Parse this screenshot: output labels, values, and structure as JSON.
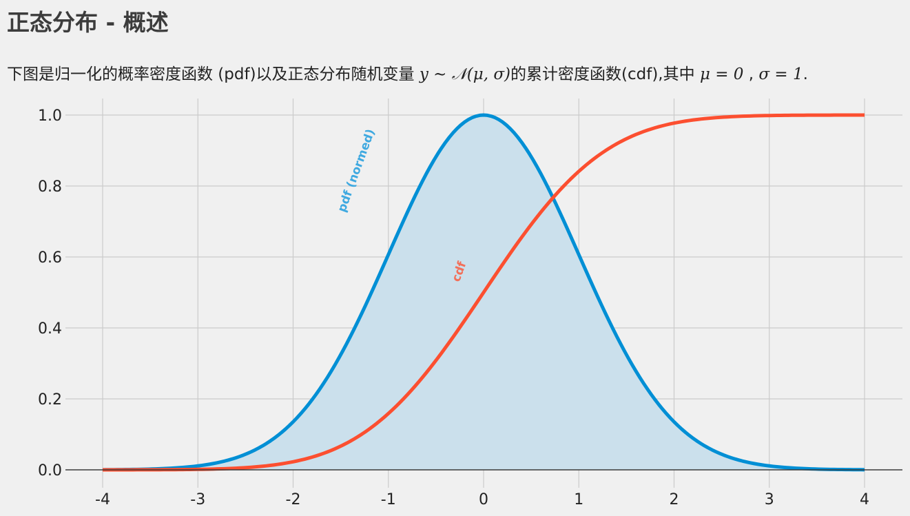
{
  "title": "正态分布 - 概述",
  "subtitle": {
    "prefix": "下图是归一化的概率密度函数 (pdf)以及正态分布随机变量 ",
    "math1": "y ∼ 𝒩(μ, σ)",
    "middle": "的累计密度函数(cdf),其中 ",
    "math2": "μ = 0",
    "sep": " , ",
    "math3": "σ = 1",
    "suffix": "."
  },
  "chart_data": {
    "type": "line",
    "xlim": [
      -4,
      4
    ],
    "ylim": [
      0,
      1.0
    ],
    "x_ticks": [
      "-4",
      "-3",
      "-2",
      "-1",
      "0",
      "1",
      "2",
      "3",
      "4"
    ],
    "y_ticks": [
      "0.0",
      "0.2",
      "0.4",
      "0.6",
      "0.8",
      "1.0"
    ],
    "grid": true,
    "series": [
      {
        "name": "pdf (normed)",
        "color": "#008fd5",
        "fill": "#cbe0ec",
        "x": [
          -4,
          -3.5,
          -3,
          -2.5,
          -2,
          -1.5,
          -1,
          -0.5,
          0,
          0.5,
          1,
          1.5,
          2,
          2.5,
          3,
          3.5,
          4
        ],
        "values": [
          0.0003,
          0.0022,
          0.0111,
          0.0439,
          0.1353,
          0.3247,
          0.6065,
          0.8825,
          1.0,
          0.8825,
          0.6065,
          0.3247,
          0.1353,
          0.0439,
          0.0111,
          0.0022,
          0.0003
        ]
      },
      {
        "name": "cdf",
        "color": "#fc4f30",
        "x": [
          -4,
          -3.5,
          -3,
          -2.5,
          -2,
          -1.5,
          -1,
          -0.5,
          0,
          0.5,
          1,
          1.5,
          2,
          2.5,
          3,
          3.5,
          4
        ],
        "values": [
          3e-05,
          0.0002,
          0.0013,
          0.0062,
          0.0228,
          0.0668,
          0.1587,
          0.3085,
          0.5,
          0.6915,
          0.8413,
          0.9332,
          0.9772,
          0.9938,
          0.9987,
          0.9998,
          1.0
        ]
      }
    ],
    "annotations": [
      {
        "text": "pdf (normed)",
        "x": -1.3,
        "y": 0.84,
        "rotation": -70,
        "color": "#3fa9e0"
      },
      {
        "text": "cdf",
        "x": -0.22,
        "y": 0.555,
        "rotation": -70,
        "color": "#f2705a"
      }
    ]
  }
}
